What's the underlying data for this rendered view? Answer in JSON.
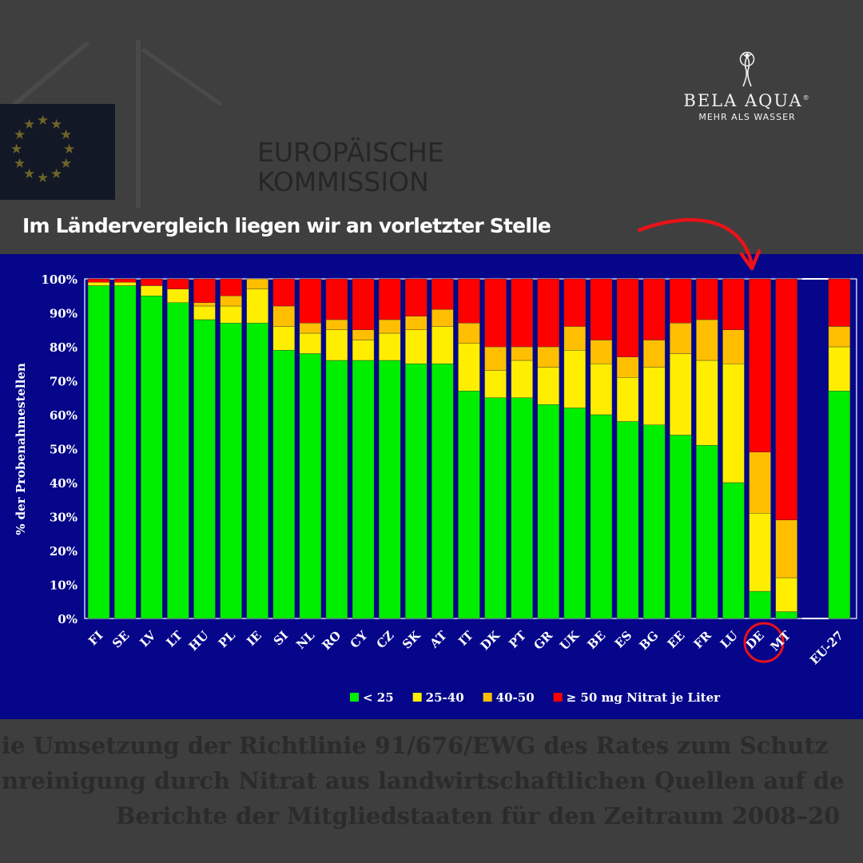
{
  "header": {
    "commission_line1": "EUROPÄISCHE",
    "commission_line2": "KOMMISSION",
    "brand_name": "BELA AQUA",
    "brand_reg": "®",
    "brand_tagline": "MEHR ALS WASSER",
    "headline": "Im Ländervergleich liegen wir an vorletzter Stelle"
  },
  "caption": {
    "line1": "ie Umsetzung der Richtlinie 91/676/EWG des Rates zum Schutz",
    "line2": "nreinigung durch Nitrat aus landwirtschaftlichen Quellen auf de",
    "line3": "Berichte der Mitgliedstaaten für den Zeitraum 2008–20"
  },
  "colors": {
    "panel": "#06068a",
    "green": "#00ee00",
    "yellow": "#ffee00",
    "orange": "#ffbf00",
    "red": "#ff0000",
    "arrow": "#e8121a"
  },
  "chart_data": {
    "type": "bar",
    "stacked": true,
    "categories": [
      "FI",
      "SE",
      "LV",
      "LT",
      "HU",
      "PL",
      "IE",
      "SI",
      "NL",
      "RO",
      "CY",
      "CZ",
      "SK",
      "AT",
      "IT",
      "DK",
      "PT",
      "GR",
      "UK",
      "BE",
      "ES",
      "BG",
      "EE",
      "FR",
      "LU",
      "DE",
      "MT",
      "",
      "EU-27"
    ],
    "series": [
      {
        "name": "< 25",
        "color": "#00ee00",
        "values": [
          98,
          98,
          95,
          93,
          88,
          87,
          87,
          79,
          78,
          76,
          76,
          76,
          75,
          75,
          67,
          65,
          65,
          63,
          62,
          60,
          58,
          57,
          54,
          51,
          40,
          8,
          2,
          null,
          67
        ]
      },
      {
        "name": "25-40",
        "color": "#ffee00",
        "values": [
          1,
          1,
          3,
          4,
          4,
          5,
          10,
          7,
          6,
          9,
          6,
          8,
          10,
          11,
          14,
          8,
          11,
          11,
          17,
          15,
          13,
          17,
          24,
          25,
          35,
          23,
          10,
          null,
          13
        ]
      },
      {
        "name": "40-50",
        "color": "#ffbf00",
        "values": [
          0,
          0,
          0,
          0,
          1,
          3,
          3,
          6,
          3,
          3,
          3,
          4,
          4,
          5,
          6,
          7,
          4,
          6,
          7,
          7,
          6,
          8,
          9,
          12,
          10,
          18,
          17,
          null,
          6
        ]
      },
      {
        "name": "≥ 50 mg Nitrat je Liter",
        "color": "#ff0000",
        "values": [
          1,
          1,
          2,
          3,
          7,
          5,
          0,
          8,
          13,
          12,
          15,
          12,
          11,
          9,
          13,
          20,
          20,
          20,
          14,
          18,
          23,
          18,
          13,
          12,
          15,
          51,
          71,
          null,
          14
        ]
      }
    ],
    "ylabel": "% der Probenahmestellen",
    "ylim": [
      0,
      100
    ],
    "yticks": [
      "0%",
      "10%",
      "20%",
      "30%",
      "40%",
      "50%",
      "60%",
      "70%",
      "80%",
      "90%",
      "100%"
    ],
    "legend_position": "bottom",
    "highlight_category": "DE",
    "grid": false
  }
}
